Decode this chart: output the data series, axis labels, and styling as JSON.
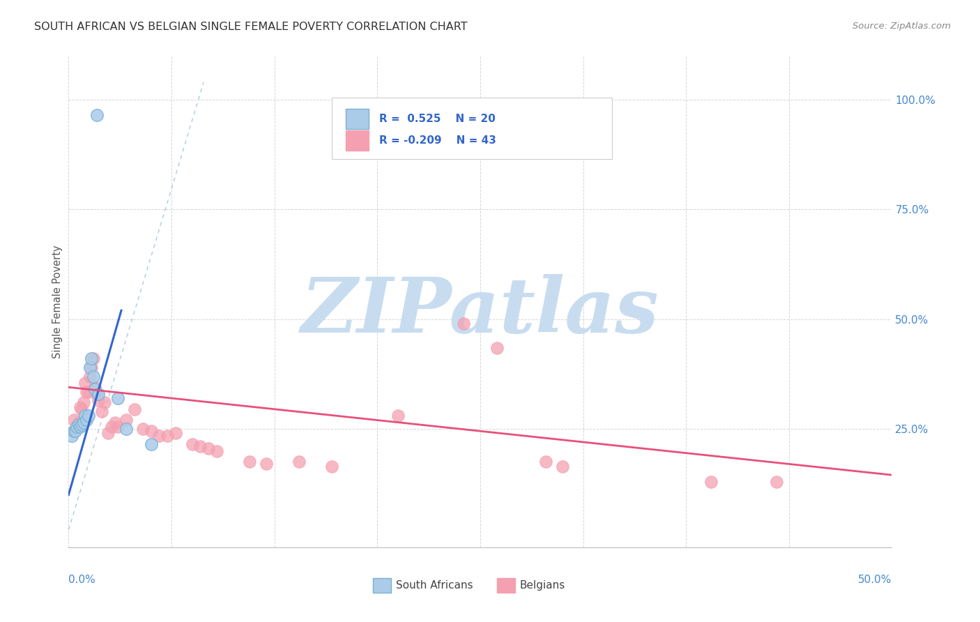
{
  "title": "SOUTH AFRICAN VS BELGIAN SINGLE FEMALE POVERTY CORRELATION CHART",
  "source": "Source: ZipAtlas.com",
  "ylabel": "Single Female Poverty",
  "sa_R": 0.525,
  "sa_N": 20,
  "belgian_R": -0.209,
  "belgian_N": 43,
  "sa_color": "#7BAFD4",
  "sa_color_face": "#AACCE8",
  "belgian_color": "#F4A0B0",
  "belgian_color_face": "#F4A0B0",
  "sa_line_color": "#3366CC",
  "belgian_line_color": "#E8507A",
  "dash_line_color": "#9BBBD4",
  "background_color": "#FFFFFF",
  "grid_color": "#CCCCCC",
  "right_tick_color": "#4488CC",
  "title_color": "#333333",
  "source_color": "#888888",
  "ylabel_color": "#555555",
  "watermark_color": "#C8DCF0",
  "legend_text_color": "#3366CC",
  "xlim": [
    0.0,
    0.5
  ],
  "ylim": [
    -0.02,
    1.1
  ],
  "sa_points": [
    [
      0.002,
      0.235
    ],
    [
      0.003,
      0.245
    ],
    [
      0.004,
      0.245
    ],
    [
      0.005,
      0.255
    ],
    [
      0.006,
      0.26
    ],
    [
      0.007,
      0.255
    ],
    [
      0.008,
      0.26
    ],
    [
      0.009,
      0.265
    ],
    [
      0.01,
      0.28
    ],
    [
      0.011,
      0.27
    ],
    [
      0.012,
      0.28
    ],
    [
      0.013,
      0.39
    ],
    [
      0.014,
      0.41
    ],
    [
      0.015,
      0.37
    ],
    [
      0.016,
      0.34
    ],
    [
      0.018,
      0.33
    ],
    [
      0.03,
      0.32
    ],
    [
      0.035,
      0.25
    ],
    [
      0.05,
      0.215
    ],
    [
      0.017,
      0.965
    ]
  ],
  "belgian_points": [
    [
      0.003,
      0.27
    ],
    [
      0.005,
      0.255
    ],
    [
      0.006,
      0.265
    ],
    [
      0.007,
      0.3
    ],
    [
      0.008,
      0.295
    ],
    [
      0.009,
      0.31
    ],
    [
      0.01,
      0.355
    ],
    [
      0.011,
      0.335
    ],
    [
      0.012,
      0.335
    ],
    [
      0.013,
      0.37
    ],
    [
      0.014,
      0.39
    ],
    [
      0.015,
      0.41
    ],
    [
      0.016,
      0.345
    ],
    [
      0.017,
      0.33
    ],
    [
      0.018,
      0.315
    ],
    [
      0.02,
      0.29
    ],
    [
      0.022,
      0.31
    ],
    [
      0.024,
      0.24
    ],
    [
      0.026,
      0.255
    ],
    [
      0.028,
      0.265
    ],
    [
      0.03,
      0.255
    ],
    [
      0.035,
      0.27
    ],
    [
      0.04,
      0.295
    ],
    [
      0.045,
      0.25
    ],
    [
      0.05,
      0.245
    ],
    [
      0.055,
      0.235
    ],
    [
      0.06,
      0.235
    ],
    [
      0.065,
      0.24
    ],
    [
      0.075,
      0.215
    ],
    [
      0.08,
      0.21
    ],
    [
      0.085,
      0.205
    ],
    [
      0.09,
      0.2
    ],
    [
      0.11,
      0.175
    ],
    [
      0.12,
      0.17
    ],
    [
      0.14,
      0.175
    ],
    [
      0.16,
      0.165
    ],
    [
      0.2,
      0.28
    ],
    [
      0.24,
      0.49
    ],
    [
      0.26,
      0.435
    ],
    [
      0.29,
      0.175
    ],
    [
      0.3,
      0.165
    ],
    [
      0.39,
      0.13
    ],
    [
      0.43,
      0.13
    ]
  ],
  "watermark_text": "ZIPatlas"
}
